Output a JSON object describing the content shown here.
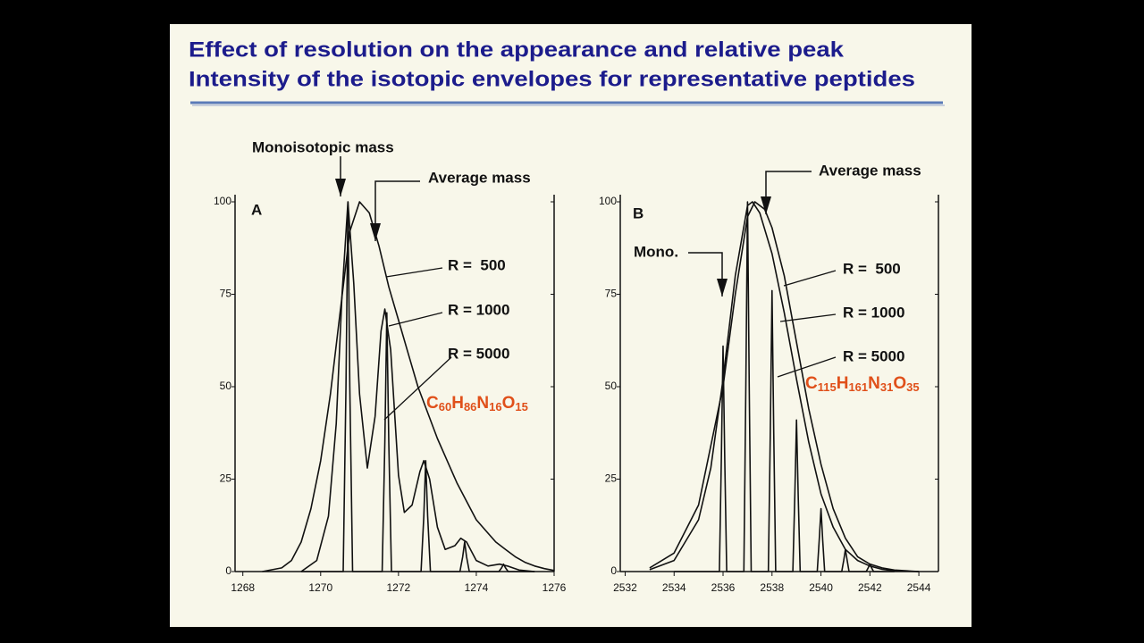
{
  "title_lines": [
    "Effect of resolution on the appearance and relative peak",
    "Intensity of the isotopic envelopes for representative peptides"
  ],
  "chart_data": [
    {
      "type": "line",
      "panel_label": "A",
      "annotations": [
        "Monoisotopic mass",
        "Average mass"
      ],
      "formula": [
        "C",
        "60",
        "H",
        "86",
        "N",
        "16",
        "O",
        "15"
      ],
      "xlim": [
        1267.8,
        1276
      ],
      "xticks": [
        1268,
        1270,
        1272,
        1274,
        1276
      ],
      "ylim": [
        0,
        100
      ],
      "yticks": [
        0,
        25,
        50,
        75,
        100
      ],
      "series": [
        {
          "name": "R =  500",
          "color": "#111111",
          "x": [
            1268.5,
            1269,
            1269.25,
            1269.5,
            1269.75,
            1270,
            1270.25,
            1270.5,
            1270.75,
            1271,
            1271.25,
            1271.5,
            1271.75,
            1272,
            1272.25,
            1272.5,
            1272.75,
            1273,
            1273.25,
            1273.5,
            1273.75,
            1274,
            1274.25,
            1274.5,
            1274.75,
            1275,
            1275.25,
            1275.5,
            1275.75,
            1276
          ],
          "values": [
            0,
            1,
            3,
            8,
            17,
            30,
            48,
            70,
            92,
            100,
            97,
            88,
            77,
            68,
            59,
            50,
            43,
            36,
            30,
            24,
            19,
            14,
            11,
            8,
            6,
            4,
            2.5,
            1.5,
            0.8,
            0.3
          ]
        },
        {
          "name": "R = 1000",
          "color": "#111111",
          "x": [
            1269.5,
            1269.9,
            1270.2,
            1270.4,
            1270.55,
            1270.7,
            1270.85,
            1271,
            1271.2,
            1271.4,
            1271.55,
            1271.65,
            1271.8,
            1272,
            1272.15,
            1272.35,
            1272.55,
            1272.65,
            1272.8,
            1273,
            1273.2,
            1273.45,
            1273.6,
            1273.75,
            1274,
            1274.3,
            1274.6,
            1274.8,
            1275.1,
            1275.5
          ],
          "values": [
            0,
            3,
            15,
            40,
            75,
            100,
            78,
            48,
            28,
            42,
            65,
            71,
            60,
            26,
            16,
            18,
            27,
            30,
            25,
            12,
            6,
            7,
            9,
            8,
            3,
            1.5,
            2,
            1.5,
            0.4,
            0
          ]
        },
        {
          "name": "R = 5000",
          "color": "#111111",
          "x": [
            1269.5,
            1270.58,
            1270.65,
            1270.7,
            1270.75,
            1270.82,
            1271.58,
            1271.65,
            1271.7,
            1271.75,
            1271.82,
            1272.58,
            1272.65,
            1272.7,
            1272.75,
            1272.82,
            1273.58,
            1273.65,
            1273.7,
            1273.75,
            1273.82,
            1274.58,
            1274.65,
            1274.7,
            1274.75,
            1274.82,
            1275.5
          ],
          "values": [
            0,
            0,
            50,
            100,
            50,
            0,
            0,
            35,
            70,
            35,
            0,
            0,
            15,
            30,
            15,
            0,
            0,
            4,
            8,
            4,
            0,
            0,
            1,
            2,
            1,
            0,
            0
          ]
        }
      ]
    },
    {
      "type": "line",
      "panel_label": "B",
      "annotations": [
        "Mono.",
        "Average mass"
      ],
      "formula": [
        "C",
        "115",
        "H",
        "161",
        "N",
        "31",
        "O",
        "35"
      ],
      "xlim": [
        2531.8,
        2544.8
      ],
      "xticks": [
        2532,
        2534,
        2536,
        2538,
        2540,
        2542,
        2544
      ],
      "ylim": [
        0,
        100
      ],
      "yticks": [
        0,
        25,
        50,
        75,
        100
      ],
      "series": [
        {
          "name": "R =  500",
          "color": "#111111",
          "x": [
            2533,
            2534,
            2535,
            2536,
            2536.5,
            2537,
            2537.3,
            2537.7,
            2538,
            2538.5,
            2539,
            2539.5,
            2540,
            2540.5,
            2541,
            2541.5,
            2542,
            2542.5,
            2543,
            2544
          ],
          "values": [
            1,
            5,
            18,
            50,
            75,
            96,
            100,
            98,
            93,
            80,
            62,
            44,
            29,
            17,
            9,
            4,
            2,
            1,
            0.4,
            0
          ]
        },
        {
          "name": "R = 1000",
          "color": "#111111",
          "x": [
            2533,
            2534,
            2535,
            2535.5,
            2536,
            2536.5,
            2537,
            2537.2,
            2537.5,
            2538,
            2538.5,
            2539,
            2539.5,
            2540,
            2540.5,
            2541,
            2541.5,
            2542,
            2542.5,
            2543,
            2544
          ],
          "values": [
            0.5,
            3,
            14,
            28,
            52,
            80,
            99,
            100,
            97,
            86,
            70,
            52,
            35,
            21,
            12,
            6,
            3,
            1.5,
            0.6,
            0.2,
            0
          ]
        },
        {
          "name": "R = 5000",
          "color": "#111111",
          "x": [
            2534,
            2535.85,
            2535.93,
            2536,
            2536.07,
            2536.15,
            2536.85,
            2536.93,
            2537,
            2537.07,
            2537.15,
            2537.85,
            2537.93,
            2538,
            2538.07,
            2538.15,
            2538.85,
            2538.93,
            2539,
            2539.07,
            2539.15,
            2539.85,
            2539.93,
            2540,
            2540.07,
            2540.15,
            2540.85,
            2540.93,
            2541,
            2541.07,
            2541.15,
            2541.85,
            2541.93,
            2542,
            2542.07,
            2542.15,
            2543
          ],
          "values": [
            0,
            0,
            30.5,
            61,
            30.5,
            0,
            0,
            50,
            100,
            50,
            0,
            0,
            38,
            76,
            38,
            0,
            0,
            20.5,
            41,
            20.5,
            0,
            0,
            8.5,
            17,
            8.5,
            0,
            0,
            3,
            6,
            3,
            0,
            0,
            1,
            2,
            1,
            0,
            0
          ]
        }
      ]
    }
  ]
}
